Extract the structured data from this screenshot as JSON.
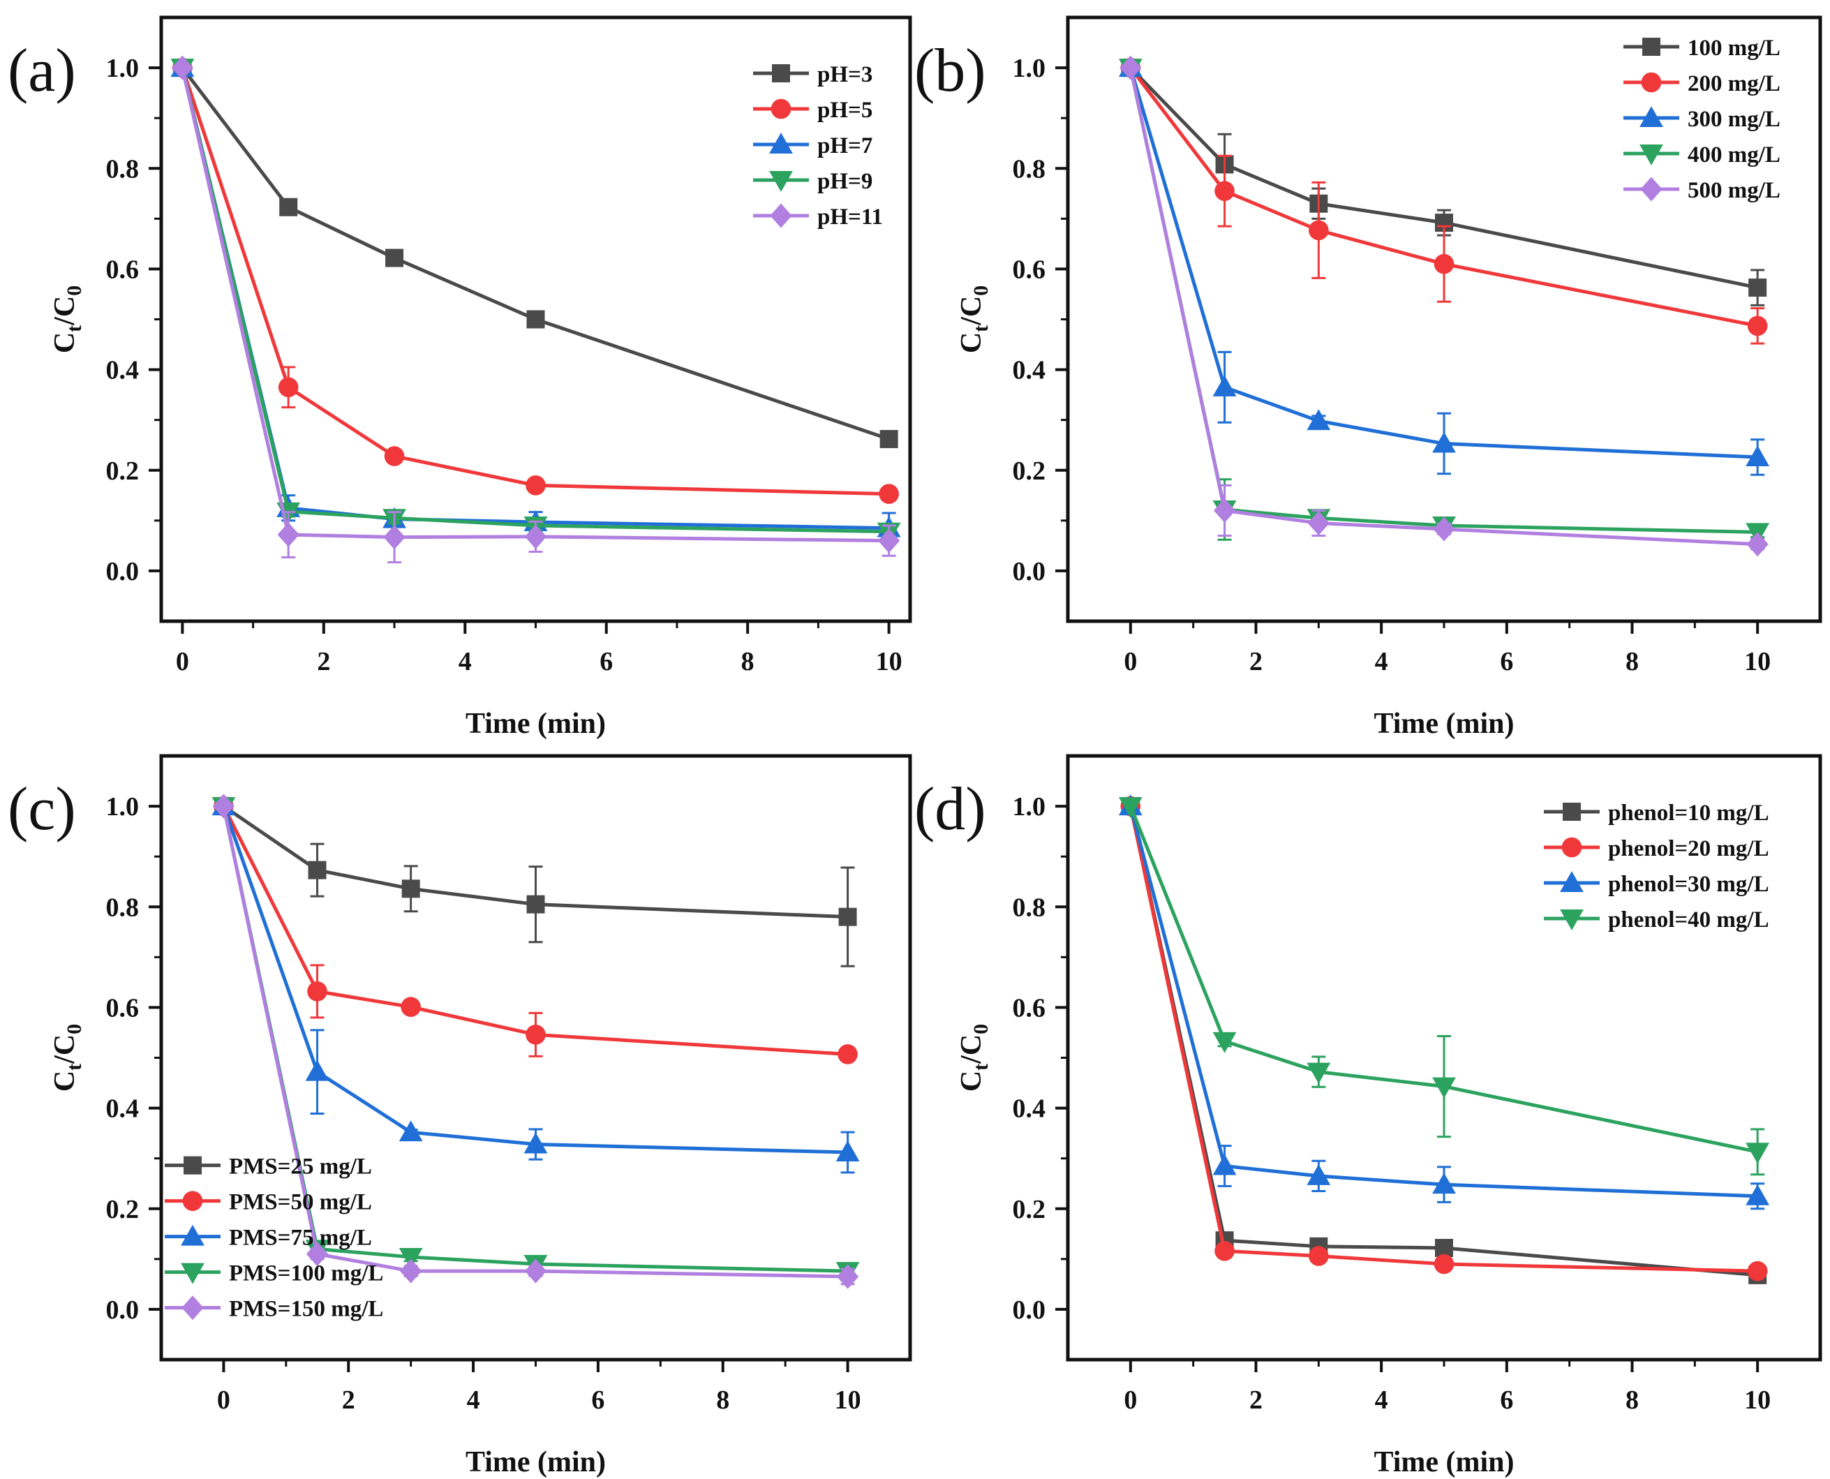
{
  "colors": {
    "black": "#4a4a4a",
    "red": "#f0383a",
    "blue": "#1f6fd6",
    "green": "#2ca25f",
    "purple": "#b07fe0"
  },
  "chart_data": [
    {
      "type": "line",
      "panel_label": "(a)",
      "xlabel": "Time (min)",
      "ylabel_parts": [
        "C",
        "t",
        "/C",
        "0"
      ],
      "xlim": [
        -0.3,
        10.3
      ],
      "ylim": [
        -0.1,
        1.1
      ],
      "xticks": [
        0,
        2,
        4,
        6,
        8,
        10
      ],
      "yticks": [
        "0.0",
        "0.2",
        "0.4",
        "0.6",
        "0.8",
        "1.0"
      ],
      "legend_position": "top-right",
      "grid": false,
      "x": [
        0,
        1.5,
        3,
        5,
        10
      ],
      "series": [
        {
          "name": "pH=3",
          "color": "black",
          "marker": "square",
          "values": [
            1,
            0.723,
            0.622,
            0.5,
            0.262
          ],
          "err": [
            0,
            0.015,
            0.01,
            0.008,
            0.008
          ]
        },
        {
          "name": "pH=5",
          "color": "red",
          "marker": "circle",
          "values": [
            1,
            0.365,
            0.228,
            0.17,
            0.153
          ],
          "err": [
            0,
            0.04,
            0.01,
            0.01,
            0.01
          ]
        },
        {
          "name": "pH=7",
          "color": "blue",
          "marker": "triangle-up",
          "values": [
            1,
            0.125,
            0.103,
            0.097,
            0.085
          ],
          "err": [
            0,
            0.025,
            0.015,
            0.02,
            0.03
          ]
        },
        {
          "name": "pH=9",
          "color": "green",
          "marker": "triangle-down",
          "values": [
            1,
            0.118,
            0.105,
            0.09,
            0.078
          ],
          "err": [
            0,
            0.01,
            0.01,
            0.01,
            0.01
          ]
        },
        {
          "name": "pH=11",
          "color": "purple",
          "marker": "diamond",
          "values": [
            1,
            0.072,
            0.067,
            0.068,
            0.06
          ],
          "err": [
            0,
            0.045,
            0.05,
            0.03,
            0.03
          ]
        }
      ]
    },
    {
      "type": "line",
      "panel_label": "(b)",
      "xlabel": "Time (min)",
      "ylabel_parts": [
        "C",
        "t",
        "/C",
        "0"
      ],
      "xlim": [
        -1,
        11
      ],
      "ylim": [
        -0.1,
        1.1
      ],
      "xticks": [
        0,
        2,
        4,
        6,
        8,
        10
      ],
      "yticks": [
        "0.0",
        "0.2",
        "0.4",
        "0.6",
        "0.8",
        "1.0"
      ],
      "legend_position": "top-right",
      "grid": false,
      "x": [
        0,
        1.5,
        3,
        5,
        10
      ],
      "series": [
        {
          "name": "100 mg/L",
          "color": "black",
          "marker": "square",
          "values": [
            1,
            0.808,
            0.73,
            0.692,
            0.563
          ],
          "err": [
            0,
            0.06,
            0.03,
            0.025,
            0.035
          ]
        },
        {
          "name": "200 mg/L",
          "color": "red",
          "marker": "circle",
          "values": [
            1,
            0.755,
            0.677,
            0.61,
            0.487
          ],
          "err": [
            0,
            0.07,
            0.095,
            0.075,
            0.035
          ]
        },
        {
          "name": "300 mg/L",
          "color": "blue",
          "marker": "triangle-up",
          "values": [
            1,
            0.365,
            0.298,
            0.253,
            0.226
          ],
          "err": [
            0,
            0.07,
            0.01,
            0.06,
            0.035
          ]
        },
        {
          "name": "400 mg/L",
          "color": "green",
          "marker": "triangle-down",
          "values": [
            1,
            0.122,
            0.105,
            0.09,
            0.077
          ],
          "err": [
            0,
            0.06,
            0.01,
            0.01,
            0.01
          ]
        },
        {
          "name": "500 mg/L",
          "color": "purple",
          "marker": "diamond",
          "values": [
            1,
            0.12,
            0.095,
            0.083,
            0.053
          ],
          "err": [
            0,
            0.05,
            0.025,
            0.01,
            0.01
          ]
        }
      ]
    },
    {
      "type": "line",
      "panel_label": "(c)",
      "xlabel": "Time (min)",
      "ylabel_parts": [
        "C",
        "t",
        "/C",
        "0"
      ],
      "xlim": [
        -1,
        11
      ],
      "ylim": [
        -0.1,
        1.1
      ],
      "xticks": [
        0,
        2,
        4,
        6,
        8,
        10
      ],
      "yticks": [
        "0.0",
        "0.2",
        "0.4",
        "0.6",
        "0.8",
        "1.0"
      ],
      "legend_position": "bottom-left",
      "grid": false,
      "x": [
        0,
        1.5,
        3,
        5,
        10
      ],
      "series": [
        {
          "name": "PMS=25 mg/L",
          "color": "black",
          "marker": "square",
          "values": [
            1,
            0.873,
            0.836,
            0.805,
            0.78
          ],
          "err": [
            0,
            0.052,
            0.045,
            0.075,
            0.098
          ]
        },
        {
          "name": "PMS=50 mg/L",
          "color": "red",
          "marker": "circle",
          "values": [
            1,
            0.632,
            0.601,
            0.546,
            0.507
          ],
          "err": [
            0,
            0.052,
            0.01,
            0.043,
            0.005
          ]
        },
        {
          "name": "PMS=75 mg/L",
          "color": "blue",
          "marker": "triangle-up",
          "values": [
            1,
            0.472,
            0.352,
            0.328,
            0.312
          ],
          "err": [
            0,
            0.083,
            0.005,
            0.03,
            0.04
          ]
        },
        {
          "name": "PMS=100 mg/L",
          "color": "green",
          "marker": "triangle-down",
          "values": [
            1,
            0.12,
            0.104,
            0.09,
            0.076
          ],
          "err": [
            0,
            0.01,
            0.008,
            0.008,
            0.008
          ]
        },
        {
          "name": "PMS=150 mg/L",
          "color": "purple",
          "marker": "diamond",
          "values": [
            1,
            0.11,
            0.076,
            0.076,
            0.065
          ],
          "err": [
            0,
            0.01,
            0.01,
            0.01,
            0.015
          ]
        }
      ]
    },
    {
      "type": "line",
      "panel_label": "(d)",
      "xlabel": "Time (min)",
      "ylabel_parts": [
        "C",
        "t",
        "/C",
        "0"
      ],
      "xlim": [
        -1,
        11
      ],
      "ylim": [
        -0.1,
        1.1
      ],
      "xticks": [
        0,
        2,
        4,
        6,
        8,
        10
      ],
      "yticks": [
        "0.0",
        "0.2",
        "0.4",
        "0.6",
        "0.8",
        "1.0"
      ],
      "legend_position": "top-right",
      "grid": false,
      "x": [
        0,
        1.5,
        3,
        5,
        10
      ],
      "series": [
        {
          "name": "phenol=10 mg/L",
          "color": "black",
          "marker": "square",
          "values": [
            1,
            0.137,
            0.125,
            0.122,
            0.068
          ],
          "err": [
            0,
            0.008,
            0.008,
            0.008,
            0.005
          ]
        },
        {
          "name": "phenol=20 mg/L",
          "color": "red",
          "marker": "circle",
          "values": [
            1,
            0.116,
            0.106,
            0.09,
            0.076
          ],
          "err": [
            0,
            0.008,
            0.008,
            0.008,
            0.005
          ]
        },
        {
          "name": "phenol=30 mg/L",
          "color": "blue",
          "marker": "triangle-up",
          "values": [
            1,
            0.285,
            0.265,
            0.248,
            0.225
          ],
          "err": [
            0,
            0.04,
            0.03,
            0.035,
            0.025
          ]
        },
        {
          "name": "phenol=40 mg/L",
          "color": "green",
          "marker": "triangle-down",
          "values": [
            1,
            0.533,
            0.472,
            0.443,
            0.313
          ],
          "err": [
            0,
            0.01,
            0.03,
            0.1,
            0.045
          ]
        }
      ]
    }
  ]
}
